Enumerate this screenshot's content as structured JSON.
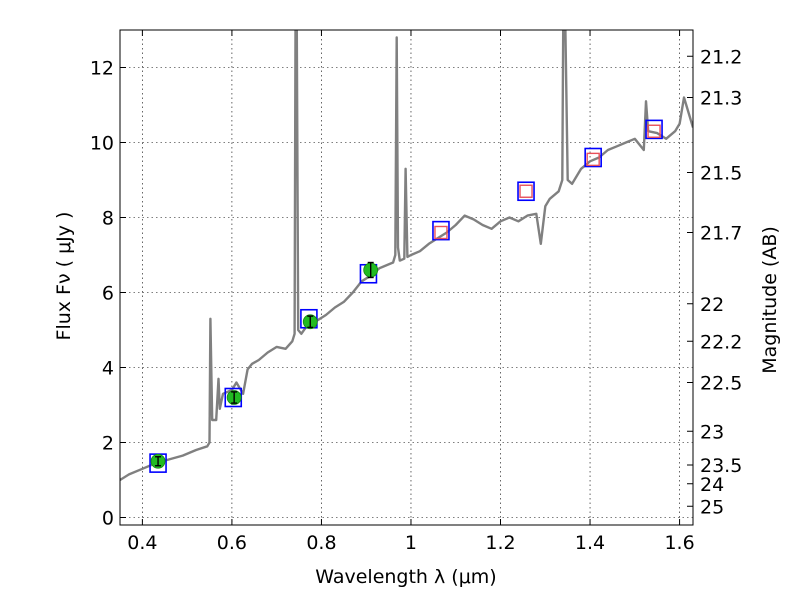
{
  "chart_data": {
    "type": "line",
    "xlabel": "Wavelength  λ (μm)",
    "ylabel": "Flux  Fν  ( μJy )",
    "y2label": "Magnitude (AB)",
    "xlim": [
      0.35,
      1.63
    ],
    "ylim": [
      -0.2,
      13.0
    ],
    "grid": true,
    "x_ticks": [
      {
        "v": 0.4,
        "label": "0.4"
      },
      {
        "v": 0.6,
        "label": "0.6"
      },
      {
        "v": 0.8,
        "label": "0.8"
      },
      {
        "v": 1.0,
        "label": "1"
      },
      {
        "v": 1.2,
        "label": "1.2"
      },
      {
        "v": 1.4,
        "label": "1.4"
      },
      {
        "v": 1.6,
        "label": "1.6"
      }
    ],
    "y_ticks": [
      {
        "v": 0,
        "label": "0"
      },
      {
        "v": 2,
        "label": "2"
      },
      {
        "v": 4,
        "label": "4"
      },
      {
        "v": 6,
        "label": "6"
      },
      {
        "v": 8,
        "label": "8"
      },
      {
        "v": 10,
        "label": "10"
      },
      {
        "v": 12,
        "label": "12"
      }
    ],
    "mag_ticks": [
      {
        "flux": 12.3,
        "label": "21.2"
      },
      {
        "flux": 11.2,
        "label": "21.3"
      },
      {
        "flux": 9.2,
        "label": "21.5"
      },
      {
        "flux": 7.6,
        "label": "21.7"
      },
      {
        "flux": 5.7,
        "label": "22"
      },
      {
        "flux": 4.7,
        "label": "22.2"
      },
      {
        "flux": 3.6,
        "label": "22.5"
      },
      {
        "flux": 2.3,
        "label": "23"
      },
      {
        "flux": 1.4,
        "label": "23.5"
      },
      {
        "flux": 0.9,
        "label": "24"
      },
      {
        "flux": 0.3,
        "label": "25"
      }
    ],
    "series": [
      {
        "type": "line",
        "color": "#808080",
        "points": [
          [
            0.35,
            1.0
          ],
          [
            0.37,
            1.15
          ],
          [
            0.4,
            1.3
          ],
          [
            0.43,
            1.45
          ],
          [
            0.46,
            1.55
          ],
          [
            0.49,
            1.65
          ],
          [
            0.52,
            1.8
          ],
          [
            0.545,
            1.9
          ],
          [
            0.55,
            2.0
          ],
          [
            0.552,
            5.3
          ],
          [
            0.556,
            2.6
          ],
          [
            0.565,
            2.6
          ],
          [
            0.57,
            3.7
          ],
          [
            0.573,
            2.9
          ],
          [
            0.58,
            3.3
          ],
          [
            0.6,
            3.4
          ],
          [
            0.61,
            3.6
          ],
          [
            0.625,
            3.3
          ],
          [
            0.635,
            3.95
          ],
          [
            0.645,
            4.1
          ],
          [
            0.66,
            4.2
          ],
          [
            0.68,
            4.4
          ],
          [
            0.7,
            4.55
          ],
          [
            0.72,
            4.5
          ],
          [
            0.735,
            4.7
          ],
          [
            0.74,
            4.9
          ],
          [
            0.742,
            13.0
          ],
          [
            0.745,
            13.0
          ],
          [
            0.748,
            5.0
          ],
          [
            0.755,
            4.9
          ],
          [
            0.77,
            5.15
          ],
          [
            0.79,
            5.25
          ],
          [
            0.81,
            5.4
          ],
          [
            0.83,
            5.6
          ],
          [
            0.85,
            5.75
          ],
          [
            0.87,
            6.0
          ],
          [
            0.89,
            6.3
          ],
          [
            0.91,
            6.45
          ],
          [
            0.93,
            6.65
          ],
          [
            0.95,
            6.75
          ],
          [
            0.96,
            6.8
          ],
          [
            0.965,
            7.0
          ],
          [
            0.968,
            12.8
          ],
          [
            0.971,
            7.2
          ],
          [
            0.975,
            6.85
          ],
          [
            0.985,
            6.9
          ],
          [
            0.988,
            9.3
          ],
          [
            0.992,
            6.95
          ],
          [
            1.0,
            7.0
          ],
          [
            1.02,
            7.1
          ],
          [
            1.04,
            7.3
          ],
          [
            1.06,
            7.45
          ],
          [
            1.08,
            7.6
          ],
          [
            1.1,
            7.8
          ],
          [
            1.12,
            8.05
          ],
          [
            1.14,
            7.95
          ],
          [
            1.16,
            7.8
          ],
          [
            1.18,
            7.7
          ],
          [
            1.2,
            7.9
          ],
          [
            1.22,
            8.0
          ],
          [
            1.24,
            7.9
          ],
          [
            1.26,
            8.05
          ],
          [
            1.28,
            8.1
          ],
          [
            1.29,
            7.3
          ],
          [
            1.3,
            8.3
          ],
          [
            1.31,
            8.5
          ],
          [
            1.33,
            8.7
          ],
          [
            1.338,
            9.0
          ],
          [
            1.34,
            13.0
          ],
          [
            1.345,
            13.0
          ],
          [
            1.35,
            9.0
          ],
          [
            1.36,
            8.9
          ],
          [
            1.38,
            9.3
          ],
          [
            1.4,
            9.5
          ],
          [
            1.42,
            9.6
          ],
          [
            1.44,
            9.8
          ],
          [
            1.46,
            9.9
          ],
          [
            1.48,
            10.0
          ],
          [
            1.5,
            10.1
          ],
          [
            1.52,
            9.8
          ],
          [
            1.525,
            11.1
          ],
          [
            1.53,
            10.3
          ],
          [
            1.55,
            10.25
          ],
          [
            1.57,
            10.1
          ],
          [
            1.59,
            10.3
          ],
          [
            1.6,
            10.5
          ],
          [
            1.61,
            11.2
          ],
          [
            1.62,
            10.8
          ],
          [
            1.63,
            10.4
          ]
        ]
      }
    ],
    "photometry_observed": [
      {
        "x": 0.435,
        "y": 1.5,
        "err": 0.12
      },
      {
        "x": 0.605,
        "y": 3.2,
        "err": 0.15
      },
      {
        "x": 0.775,
        "y": 5.22,
        "err": 0.15
      },
      {
        "x": 0.91,
        "y": 6.6,
        "err": 0.2
      }
    ],
    "photometry_model": [
      {
        "x": 0.435,
        "y": 1.45
      },
      {
        "x": 0.603,
        "y": 3.2
      },
      {
        "x": 0.772,
        "y": 5.3
      },
      {
        "x": 0.905,
        "y": 6.5
      },
      {
        "x": 1.067,
        "y": 7.65
      },
      {
        "x": 1.257,
        "y": 8.7
      },
      {
        "x": 1.407,
        "y": 9.6
      },
      {
        "x": 1.543,
        "y": 10.35
      }
    ],
    "photometry_upper": [
      {
        "x": 1.067,
        "y": 7.6
      },
      {
        "x": 1.257,
        "y": 8.7
      },
      {
        "x": 1.407,
        "y": 9.55
      },
      {
        "x": 1.543,
        "y": 10.3
      }
    ],
    "colors": {
      "spectrum": "#808080",
      "model_box": "#0000ff",
      "observed_fill": "#22bb22",
      "upper_box": "#e8505a"
    }
  }
}
